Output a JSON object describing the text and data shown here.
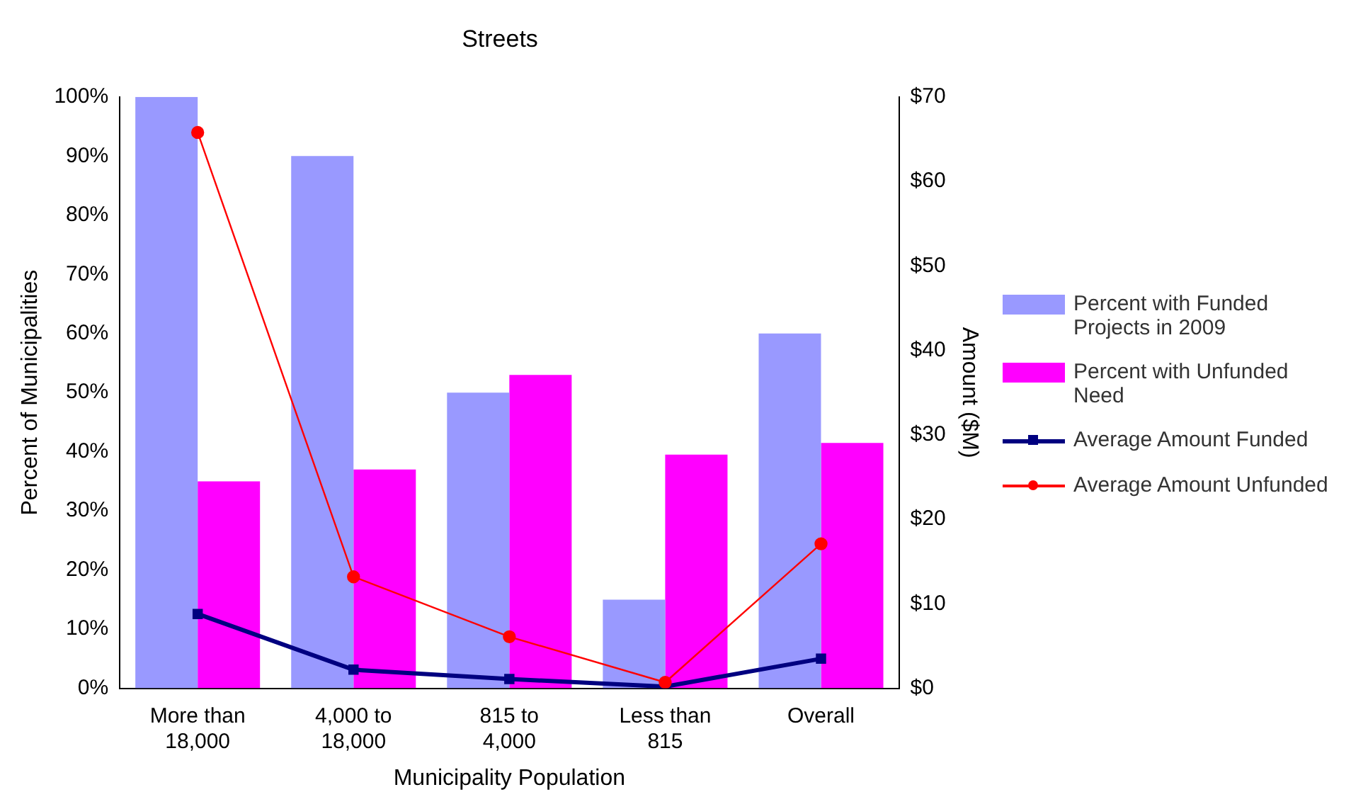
{
  "chart_data": {
    "type": "bar",
    "title": "Streets",
    "xlabel": "Municipality Population",
    "ylabel": "Percent of Municipalities",
    "y2label": "Amount ($M)",
    "categories": [
      "More than 18,000",
      "4,000 to 18,000",
      "815 to 4,000",
      "Less than 815",
      "Overall"
    ],
    "series": [
      {
        "name": "Percent with Funded Projects in 2009",
        "color": "#9999ff",
        "values": [
          100,
          90,
          50,
          15,
          60
        ]
      },
      {
        "name": "Percent with Unfunded Need",
        "color": "#ff00ff",
        "values": [
          35,
          37,
          53,
          39.5,
          41.5
        ]
      },
      {
        "name": "Average Amount Funded",
        "type": "line",
        "axis": "y2",
        "marker": "square",
        "color": "#000080",
        "values": [
          8.8,
          2.2,
          1.1,
          0.2,
          3.5
        ]
      },
      {
        "name": "Average Amount Unfunded",
        "type": "line",
        "axis": "y2",
        "marker": "circle",
        "color": "#ff0000",
        "values": [
          65.8,
          13.2,
          6.1,
          0.7,
          17.1
        ]
      }
    ],
    "ylim": [
      0,
      100
    ],
    "yticks": [
      {
        "value": 0,
        "label": "0%"
      },
      {
        "value": 10,
        "label": "10%"
      },
      {
        "value": 20,
        "label": "20%"
      },
      {
        "value": 30,
        "label": "30%"
      },
      {
        "value": 40,
        "label": "40%"
      },
      {
        "value": 50,
        "label": "50%"
      },
      {
        "value": 60,
        "label": "60%"
      },
      {
        "value": 70,
        "label": "70%"
      },
      {
        "value": 80,
        "label": "80%"
      },
      {
        "value": 90,
        "label": "90%"
      },
      {
        "value": 100,
        "label": "100%"
      }
    ],
    "y2lim": [
      0,
      70
    ],
    "y2ticks": [
      {
        "value": 0,
        "label": "$0"
      },
      {
        "value": 10,
        "label": "$10"
      },
      {
        "value": 20,
        "label": "$20"
      },
      {
        "value": 30,
        "label": "$30"
      },
      {
        "value": 40,
        "label": "$40"
      },
      {
        "value": 50,
        "label": "$50"
      },
      {
        "value": 60,
        "label": "$60"
      },
      {
        "value": 70,
        "label": "$70"
      }
    ],
    "grid": false,
    "legend": "right"
  }
}
